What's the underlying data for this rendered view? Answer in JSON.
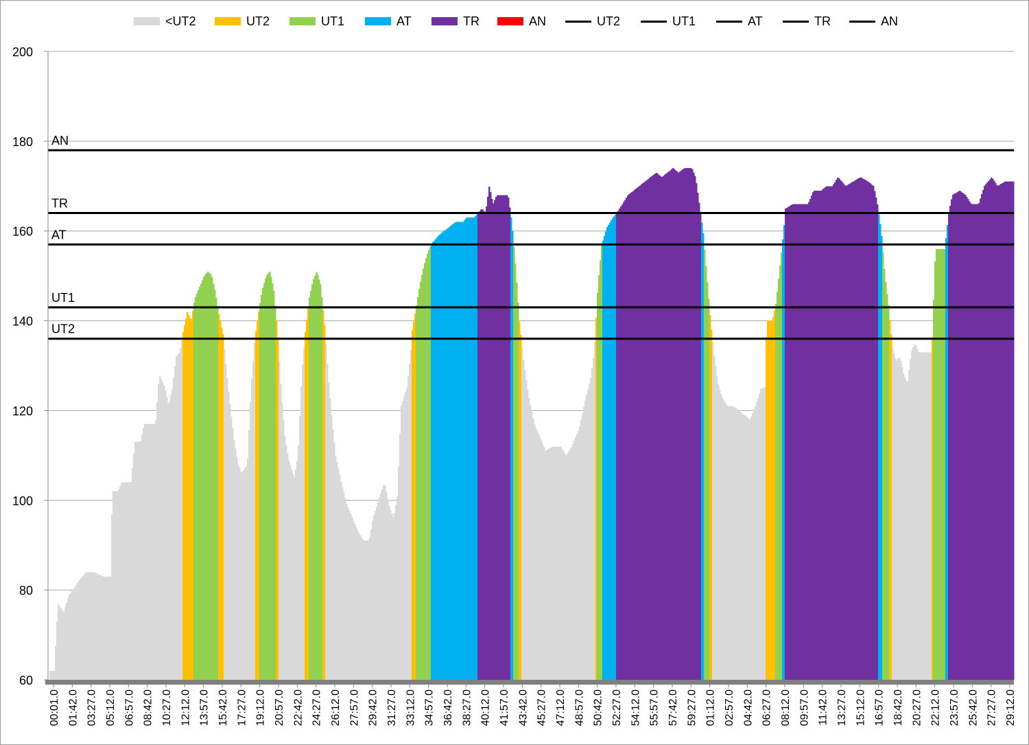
{
  "chart_data": {
    "type": "area",
    "title": "",
    "xlabel": "",
    "ylabel": "",
    "ylim": [
      60,
      200
    ],
    "yticks": [
      60,
      80,
      100,
      120,
      140,
      160,
      180,
      200
    ],
    "grid": "horizontal",
    "legend_position": "top",
    "x_tick_labels": [
      "00:01.0",
      "01:42.0",
      "03:27.0",
      "05:12.0",
      "06:57.0",
      "08:42.0",
      "10:27.0",
      "12:12.0",
      "13:57.0",
      "15:42.0",
      "17:27.0",
      "19:12.0",
      "20:57.0",
      "22:42.0",
      "24:27.0",
      "26:12.0",
      "27:57.0",
      "29:42.0",
      "31:27.0",
      "33:12.0",
      "34:57.0",
      "36:42.0",
      "38:27.0",
      "40:12.0",
      "41:57.0",
      "43:42.0",
      "45:27.0",
      "47:12.0",
      "48:57.0",
      "50:42.0",
      "52:27.0",
      "54:12.0",
      "55:57.0",
      "57:42.0",
      "59:27.0",
      "01:12.0",
      "02:57.0",
      "04:42.0",
      "06:27.0",
      "08:12.0",
      "09:57.0",
      "11:42.0",
      "13:27.0",
      "15:12.0",
      "16:57.0",
      "18:42.0",
      "20:27.0",
      "22:12.0",
      "23:57.0",
      "25:42.0",
      "27:27.0",
      "29:12.0"
    ],
    "series": [
      {
        "name": "<UT2",
        "kind": "area",
        "color": "#d9d9d9"
      },
      {
        "name": "UT2",
        "kind": "area",
        "color": "#ffc000"
      },
      {
        "name": "UT1",
        "kind": "area",
        "color": "#92d050"
      },
      {
        "name": "AT",
        "kind": "area",
        "color": "#00b0f0"
      },
      {
        "name": "TR",
        "kind": "area",
        "color": "#7030a0"
      },
      {
        "name": "AN",
        "kind": "area",
        "color": "#ff0000"
      },
      {
        "name": "UT2",
        "kind": "line",
        "color": "#000000",
        "value": 136
      },
      {
        "name": "UT1",
        "kind": "line",
        "color": "#000000",
        "value": 143
      },
      {
        "name": "AT",
        "kind": "line",
        "color": "#000000",
        "value": 157
      },
      {
        "name": "TR",
        "kind": "line",
        "color": "#000000",
        "value": 164
      },
      {
        "name": "AN",
        "kind": "line",
        "color": "#000000",
        "value": 178
      }
    ],
    "threshold_annotations": [
      {
        "label": "UT2",
        "value": 136
      },
      {
        "label": "UT1",
        "value": 143
      },
      {
        "label": "AT",
        "value": 157
      },
      {
        "label": "TR",
        "value": 164
      },
      {
        "label": "AN",
        "value": 178
      }
    ],
    "heart_rate_profile": {
      "x_index_range": [
        0,
        51
      ],
      "points": [
        [
          0.0,
          62
        ],
        [
          0.2,
          77
        ],
        [
          0.5,
          75
        ],
        [
          0.8,
          79
        ],
        [
          1.0,
          80
        ],
        [
          1.3,
          82
        ],
        [
          1.7,
          84
        ],
        [
          2.1,
          84
        ],
        [
          2.6,
          83
        ],
        [
          3.0,
          83
        ],
        [
          3.1,
          102
        ],
        [
          3.4,
          102
        ],
        [
          3.6,
          104
        ],
        [
          4.1,
          104
        ],
        [
          4.3,
          113
        ],
        [
          4.6,
          113
        ],
        [
          4.8,
          117
        ],
        [
          5.4,
          117
        ],
        [
          5.6,
          128
        ],
        [
          5.9,
          125
        ],
        [
          6.1,
          121
        ],
        [
          6.3,
          125
        ],
        [
          6.5,
          132
        ],
        [
          6.7,
          133
        ],
        [
          6.9,
          138
        ],
        [
          7.1,
          142
        ],
        [
          7.3,
          140
        ],
        [
          7.5,
          145
        ],
        [
          7.8,
          148
        ],
        [
          8.0,
          150
        ],
        [
          8.2,
          151
        ],
        [
          8.4,
          150
        ],
        [
          8.6,
          146
        ],
        [
          8.8,
          141
        ],
        [
          9.0,
          137
        ],
        [
          9.2,
          128
        ],
        [
          9.4,
          120
        ],
        [
          9.6,
          113
        ],
        [
          9.8,
          108
        ],
        [
          10.0,
          106
        ],
        [
          10.3,
          108
        ],
        [
          10.5,
          125
        ],
        [
          10.7,
          136
        ],
        [
          10.9,
          142
        ],
        [
          11.1,
          147
        ],
        [
          11.3,
          150
        ],
        [
          11.5,
          151
        ],
        [
          11.7,
          147
        ],
        [
          11.9,
          138
        ],
        [
          12.1,
          124
        ],
        [
          12.3,
          114
        ],
        [
          12.5,
          109
        ],
        [
          12.8,
          105
        ],
        [
          13.0,
          110
        ],
        [
          13.2,
          128
        ],
        [
          13.4,
          138
        ],
        [
          13.6,
          145
        ],
        [
          13.8,
          149
        ],
        [
          14.0,
          151
        ],
        [
          14.2,
          148
        ],
        [
          14.4,
          140
        ],
        [
          14.6,
          128
        ],
        [
          14.8,
          118
        ],
        [
          15.0,
          110
        ],
        [
          15.3,
          104
        ],
        [
          15.6,
          99
        ],
        [
          15.9,
          96
        ],
        [
          16.2,
          93
        ],
        [
          16.5,
          91
        ],
        [
          16.8,
          91
        ],
        [
          17.0,
          96
        ],
        [
          17.3,
          100
        ],
        [
          17.6,
          104
        ],
        [
          17.9,
          98
        ],
        [
          18.1,
          96
        ],
        [
          18.3,
          101
        ],
        [
          18.5,
          121
        ],
        [
          18.8,
          125
        ],
        [
          19.0,
          132
        ],
        [
          19.1,
          138
        ],
        [
          19.3,
          143
        ],
        [
          19.5,
          148
        ],
        [
          19.7,
          152
        ],
        [
          19.9,
          155
        ],
        [
          20.1,
          157
        ],
        [
          20.3,
          158
        ],
        [
          20.5,
          159
        ],
        [
          20.8,
          160
        ],
        [
          21.1,
          161
        ],
        [
          21.4,
          162
        ],
        [
          21.8,
          162
        ],
        [
          22.0,
          163
        ],
        [
          22.4,
          163
        ],
        [
          22.6,
          164
        ],
        [
          22.8,
          165
        ],
        [
          23.0,
          164
        ],
        [
          23.2,
          170
        ],
        [
          23.4,
          166
        ],
        [
          23.6,
          168
        ],
        [
          24.2,
          168
        ],
        [
          24.4,
          162
        ],
        [
          24.6,
          152
        ],
        [
          24.8,
          140
        ],
        [
          25.0,
          132
        ],
        [
          25.3,
          123
        ],
        [
          25.6,
          117
        ],
        [
          25.9,
          114
        ],
        [
          26.2,
          111
        ],
        [
          26.6,
          112
        ],
        [
          27.0,
          112
        ],
        [
          27.3,
          110
        ],
        [
          27.6,
          112
        ],
        [
          28.0,
          116
        ],
        [
          28.3,
          122
        ],
        [
          28.6,
          127
        ],
        [
          28.8,
          133
        ],
        [
          29.0,
          148
        ],
        [
          29.2,
          157
        ],
        [
          29.5,
          161
        ],
        [
          29.8,
          163
        ],
        [
          30.0,
          164
        ],
        [
          30.3,
          166
        ],
        [
          30.6,
          168
        ],
        [
          30.9,
          169
        ],
        [
          31.2,
          170
        ],
        [
          31.5,
          171
        ],
        [
          31.8,
          172
        ],
        [
          32.1,
          173
        ],
        [
          32.4,
          172
        ],
        [
          32.7,
          173
        ],
        [
          33.0,
          174
        ],
        [
          33.3,
          173
        ],
        [
          33.6,
          174
        ],
        [
          34.0,
          174
        ],
        [
          34.2,
          172
        ],
        [
          34.4,
          166
        ],
        [
          34.6,
          160
        ],
        [
          34.8,
          150
        ],
        [
          35.0,
          140
        ],
        [
          35.2,
          132
        ],
        [
          35.4,
          126
        ],
        [
          35.6,
          123
        ],
        [
          35.9,
          121
        ],
        [
          36.2,
          121
        ],
        [
          36.5,
          120
        ],
        [
          36.8,
          119
        ],
        [
          37.1,
          118
        ],
        [
          37.4,
          121
        ],
        [
          37.7,
          125
        ],
        [
          37.9,
          125
        ],
        [
          38.0,
          140
        ],
        [
          38.3,
          140
        ],
        [
          38.5,
          144
        ],
        [
          38.7,
          152
        ],
        [
          38.9,
          160
        ],
        [
          39.0,
          165
        ],
        [
          39.4,
          166
        ],
        [
          39.8,
          166
        ],
        [
          40.2,
          166
        ],
        [
          40.5,
          169
        ],
        [
          40.9,
          169
        ],
        [
          41.2,
          170
        ],
        [
          41.5,
          170
        ],
        [
          41.8,
          172
        ],
        [
          42.2,
          170
        ],
        [
          42.6,
          171
        ],
        [
          43.0,
          172
        ],
        [
          43.4,
          171
        ],
        [
          43.7,
          170
        ],
        [
          43.9,
          166
        ],
        [
          44.1,
          160
        ],
        [
          44.3,
          150
        ],
        [
          44.5,
          143
        ],
        [
          44.7,
          134
        ],
        [
          44.9,
          131
        ],
        [
          45.1,
          132
        ],
        [
          45.3,
          128
        ],
        [
          45.5,
          126
        ],
        [
          45.7,
          133
        ],
        [
          45.9,
          135
        ],
        [
          46.1,
          133
        ],
        [
          46.5,
          133
        ],
        [
          46.8,
          133
        ],
        [
          47.0,
          156
        ],
        [
          47.5,
          156
        ],
        [
          47.7,
          164
        ],
        [
          47.9,
          168
        ],
        [
          48.3,
          169
        ],
        [
          48.6,
          168
        ],
        [
          48.9,
          166
        ],
        [
          49.3,
          166
        ],
        [
          49.6,
          170
        ],
        [
          50.0,
          172
        ],
        [
          50.3,
          170
        ],
        [
          50.7,
          171
        ],
        [
          51.0,
          171
        ]
      ]
    }
  }
}
